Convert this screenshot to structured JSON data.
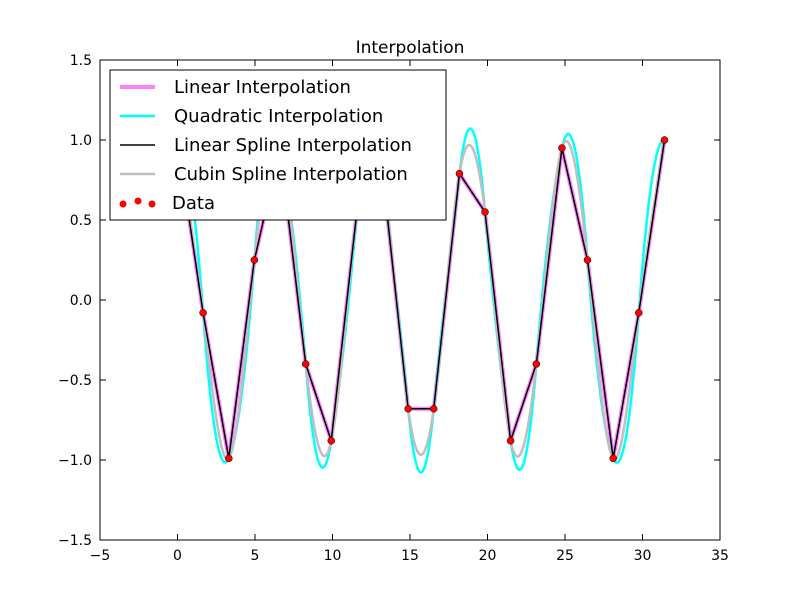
{
  "chart_data": {
    "type": "line",
    "title": "Interpolation",
    "xlabel": "",
    "ylabel": "",
    "xlim": [
      -5,
      35
    ],
    "ylim": [
      -1.5,
      1.5
    ],
    "xticks": [
      -5,
      0,
      5,
      10,
      15,
      20,
      25,
      30,
      35
    ],
    "yticks": [
      -1.5,
      -1.0,
      -0.5,
      0.0,
      0.5,
      1.0,
      1.5
    ],
    "xtick_labels": [
      "−5",
      "0",
      "5",
      "10",
      "15",
      "20",
      "25",
      "30",
      "35"
    ],
    "ytick_labels": [
      "−1.5",
      "−1.0",
      "−0.5",
      "0.0",
      "0.5",
      "1.0",
      "1.5"
    ],
    "grid": false,
    "legend_position": "top-left",
    "data": {
      "x": [
        0.0,
        1.65,
        3.31,
        4.96,
        6.61,
        8.27,
        9.92,
        11.57,
        13.23,
        14.88,
        16.53,
        18.19,
        19.84,
        21.49,
        23.15,
        24.8,
        26.45,
        28.11,
        29.76,
        31.42
      ],
      "y": [
        1.0,
        -0.08,
        -0.99,
        0.25,
        0.95,
        -0.4,
        -0.88,
        0.55,
        0.8,
        -0.68,
        -0.68,
        0.79,
        0.55,
        -0.88,
        -0.4,
        0.95,
        0.25,
        -0.99,
        -0.08,
        1.0
      ]
    },
    "series": [
      {
        "name": "Linear Interpolation",
        "color": "#ff7fff",
        "style": "piecewise-linear",
        "width": 4
      },
      {
        "name": "Quadratic Interpolation",
        "color": "#00ffff",
        "style": "quadratic-spline",
        "width": 2.5
      },
      {
        "name": "Linear Spline Interpolation",
        "color": "#000000",
        "style": "piecewise-linear",
        "width": 1.5
      },
      {
        "name": "Cubin Spline Interpolation",
        "color": "#bfbfbf",
        "style": "cubic-spline",
        "width": 2.5
      },
      {
        "name": "Data",
        "color": "#ff0000",
        "style": "markers"
      }
    ]
  }
}
